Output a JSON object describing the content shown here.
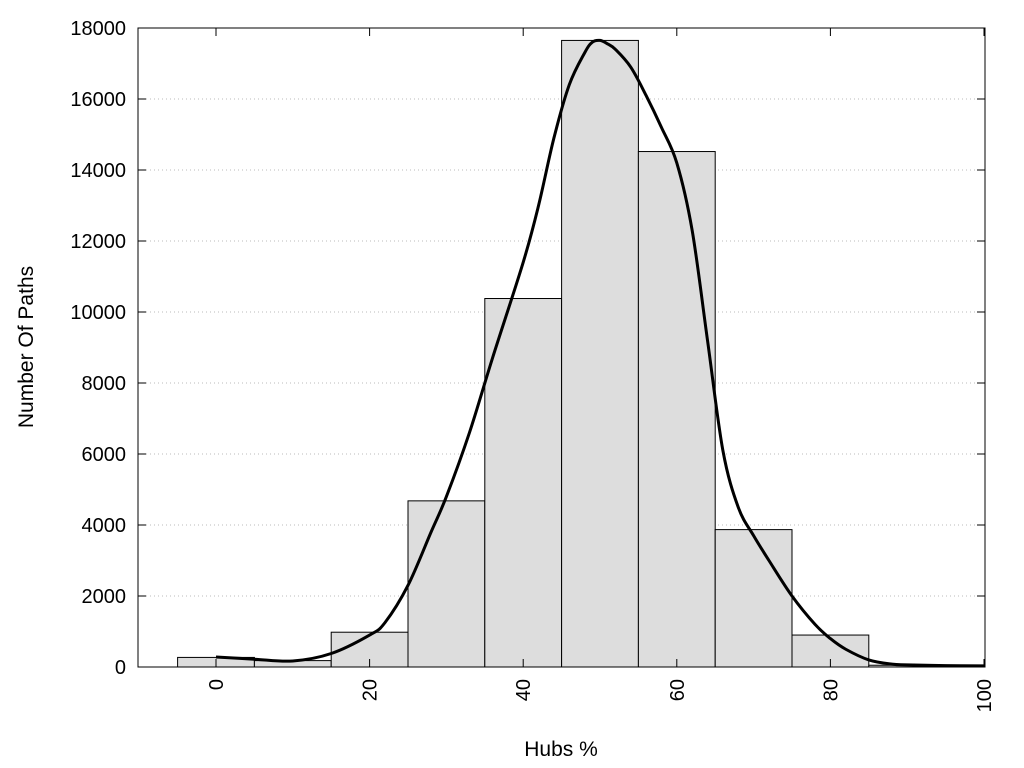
{
  "chart_data": {
    "type": "bar",
    "title": "",
    "xlabel": "Hubs %",
    "ylabel": "Number Of Paths",
    "xlim": [
      -5,
      100
    ],
    "ylim": [
      0,
      18000
    ],
    "x_ticks": [
      0,
      20,
      40,
      60,
      80,
      100
    ],
    "y_ticks": [
      0,
      2000,
      4000,
      6000,
      8000,
      10000,
      12000,
      14000,
      16000,
      18000
    ],
    "bin_width": 10,
    "bins": [
      {
        "center": 0,
        "value": 270
      },
      {
        "center": 10,
        "value": 180
      },
      {
        "center": 20,
        "value": 980
      },
      {
        "center": 30,
        "value": 4680
      },
      {
        "center": 40,
        "value": 10380
      },
      {
        "center": 50,
        "value": 17650
      },
      {
        "center": 60,
        "value": 14520
      },
      {
        "center": 70,
        "value": 3870
      },
      {
        "center": 80,
        "value": 900
      },
      {
        "center": 90,
        "value": 50
      }
    ],
    "density_curve": {
      "x": [
        0,
        5,
        10,
        15,
        20,
        22,
        25,
        28,
        30,
        33,
        36,
        40,
        42,
        44,
        46,
        48,
        49,
        50,
        51,
        52,
        54,
        56,
        58,
        60,
        62,
        64,
        66,
        68,
        70,
        72,
        75,
        78,
        80,
        82,
        85,
        88,
        90,
        95,
        100
      ],
      "y": [
        280,
        220,
        170,
        380,
        900,
        1250,
        2300,
        3800,
        4800,
        6600,
        8700,
        11400,
        13000,
        14900,
        16400,
        17300,
        17600,
        17650,
        17550,
        17400,
        16900,
        16100,
        15200,
        14200,
        12300,
        9200,
        6100,
        4500,
        3700,
        3000,
        2000,
        1200,
        800,
        500,
        200,
        80,
        60,
        40,
        30
      ]
    },
    "grid": "horizontal dotted",
    "legend": "none",
    "bar_fill": "#dddddd",
    "bar_stroke": "#000000",
    "curve_color": "#000000"
  }
}
